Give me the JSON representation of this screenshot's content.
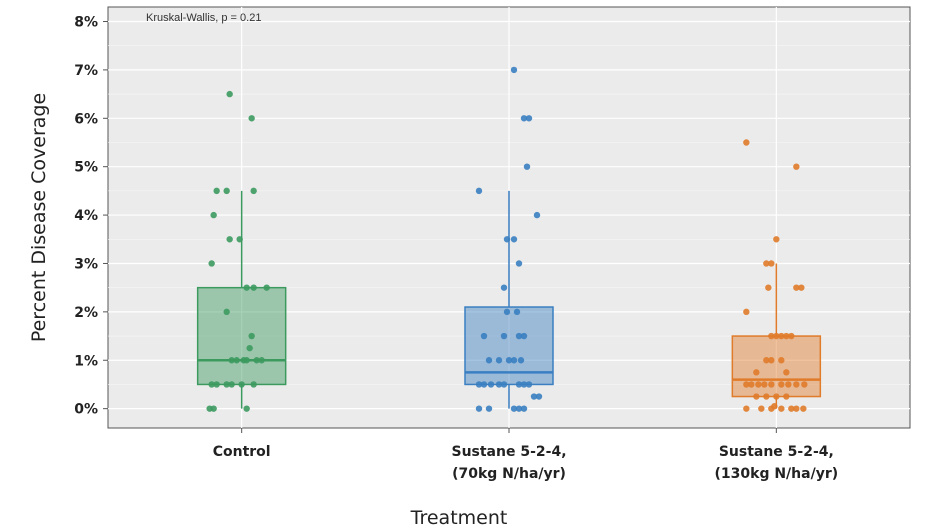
{
  "chart_data": {
    "type": "box",
    "annotation": "Kruskal-Wallis, p = 0.21",
    "xlabel": "Treatment",
    "ylabel": "Percent Disease Coverage",
    "ylim": [
      -0.4,
      8.3
    ],
    "yticks": [
      0,
      1,
      2,
      3,
      4,
      5,
      6,
      7,
      8
    ],
    "ytick_labels": [
      "0%",
      "1%",
      "2%",
      "3%",
      "4%",
      "5%",
      "6%",
      "7%",
      "8%"
    ],
    "grid": true,
    "categories": [
      {
        "line1": "Control",
        "line2": ""
      },
      {
        "line1": "Sustane 5-2-4,",
        "line2": "(70kg N/ha/yr)"
      },
      {
        "line1": "Sustane 5-2-4,",
        "line2": "(130kg N/ha/yr)"
      }
    ],
    "boxes": [
      {
        "q1": 0.5,
        "median": 1.0,
        "q3": 2.5,
        "whisker_low": 0,
        "whisker_high": 4.5,
        "color": "#3c9a5f",
        "points": [
          [
            -0.12,
            6.5
          ],
          [
            0.1,
            6.0
          ],
          [
            -0.25,
            4.5
          ],
          [
            -0.15,
            4.5
          ],
          [
            0.12,
            4.5
          ],
          [
            -0.12,
            3.5
          ],
          [
            -0.02,
            3.5
          ],
          [
            -0.28,
            4.0
          ],
          [
            -0.3,
            3.0
          ],
          [
            0.05,
            2.5
          ],
          [
            0.12,
            2.5
          ],
          [
            0.25,
            2.5
          ],
          [
            -0.15,
            2.0
          ],
          [
            0.1,
            1.5
          ],
          [
            0.08,
            1.25
          ],
          [
            -0.1,
            1.0
          ],
          [
            -0.05,
            1.0
          ],
          [
            0.02,
            1.0
          ],
          [
            0.05,
            1.0
          ],
          [
            0.15,
            1.0
          ],
          [
            0.2,
            1.0
          ],
          [
            -0.3,
            0.5
          ],
          [
            -0.25,
            0.5
          ],
          [
            -0.15,
            0.5
          ],
          [
            -0.1,
            0.5
          ],
          [
            0.0,
            0.5
          ],
          [
            0.12,
            0.5
          ],
          [
            -0.32,
            0.0
          ],
          [
            -0.28,
            0.0
          ],
          [
            0.05,
            0.0
          ]
        ]
      },
      {
        "q1": 0.5,
        "median": 0.75,
        "q3": 2.1,
        "whisker_low": 0,
        "whisker_high": 4.5,
        "color": "#3a7fc1",
        "points": [
          [
            0.05,
            7.0
          ],
          [
            0.15,
            6.0
          ],
          [
            0.2,
            6.0
          ],
          [
            -0.3,
            4.5
          ],
          [
            0.18,
            5.0
          ],
          [
            0.28,
            4.0
          ],
          [
            -0.02,
            3.5
          ],
          [
            0.05,
            3.5
          ],
          [
            0.1,
            3.0
          ],
          [
            -0.05,
            2.5
          ],
          [
            -0.02,
            2.0
          ],
          [
            0.08,
            2.0
          ],
          [
            -0.25,
            1.5
          ],
          [
            -0.05,
            1.5
          ],
          [
            0.1,
            1.5
          ],
          [
            0.15,
            1.5
          ],
          [
            -0.2,
            1.0
          ],
          [
            -0.1,
            1.0
          ],
          [
            0.0,
            1.0
          ],
          [
            0.05,
            1.0
          ],
          [
            0.12,
            1.0
          ],
          [
            -0.3,
            0.5
          ],
          [
            -0.25,
            0.5
          ],
          [
            -0.18,
            0.5
          ],
          [
            -0.1,
            0.5
          ],
          [
            -0.05,
            0.5
          ],
          [
            0.1,
            0.5
          ],
          [
            0.15,
            0.5
          ],
          [
            0.2,
            0.5
          ],
          [
            0.25,
            0.25
          ],
          [
            0.3,
            0.25
          ],
          [
            -0.3,
            0.0
          ],
          [
            -0.2,
            0.0
          ],
          [
            0.05,
            0.0
          ],
          [
            0.1,
            0.0
          ],
          [
            0.15,
            0.0
          ]
        ]
      },
      {
        "q1": 0.25,
        "median": 0.6,
        "q3": 1.5,
        "whisker_low": 0,
        "whisker_high": 3.0,
        "color": "#e07b2a",
        "points": [
          [
            -0.3,
            5.5
          ],
          [
            0.2,
            5.0
          ],
          [
            0.0,
            3.5
          ],
          [
            -0.1,
            3.0
          ],
          [
            -0.05,
            3.0
          ],
          [
            -0.08,
            2.5
          ],
          [
            0.2,
            2.5
          ],
          [
            0.25,
            2.5
          ],
          [
            -0.3,
            2.0
          ],
          [
            -0.05,
            1.5
          ],
          [
            0.0,
            1.5
          ],
          [
            0.05,
            1.5
          ],
          [
            0.1,
            1.5
          ],
          [
            0.15,
            1.5
          ],
          [
            -0.1,
            1.0
          ],
          [
            -0.05,
            1.0
          ],
          [
            0.05,
            1.0
          ],
          [
            -0.2,
            0.75
          ],
          [
            0.1,
            0.75
          ],
          [
            -0.3,
            0.5
          ],
          [
            -0.25,
            0.5
          ],
          [
            -0.18,
            0.5
          ],
          [
            -0.12,
            0.5
          ],
          [
            -0.05,
            0.5
          ],
          [
            0.05,
            0.5
          ],
          [
            0.12,
            0.5
          ],
          [
            0.2,
            0.5
          ],
          [
            0.28,
            0.5
          ],
          [
            -0.2,
            0.25
          ],
          [
            -0.1,
            0.25
          ],
          [
            0.0,
            0.25
          ],
          [
            0.1,
            0.25
          ],
          [
            -0.3,
            0.0
          ],
          [
            -0.15,
            0.0
          ],
          [
            -0.05,
            0.0
          ],
          [
            -0.02,
            0.05
          ],
          [
            0.05,
            0.0
          ],
          [
            0.15,
            0.0
          ],
          [
            0.2,
            0.0
          ],
          [
            0.27,
            0.0
          ]
        ]
      }
    ]
  }
}
